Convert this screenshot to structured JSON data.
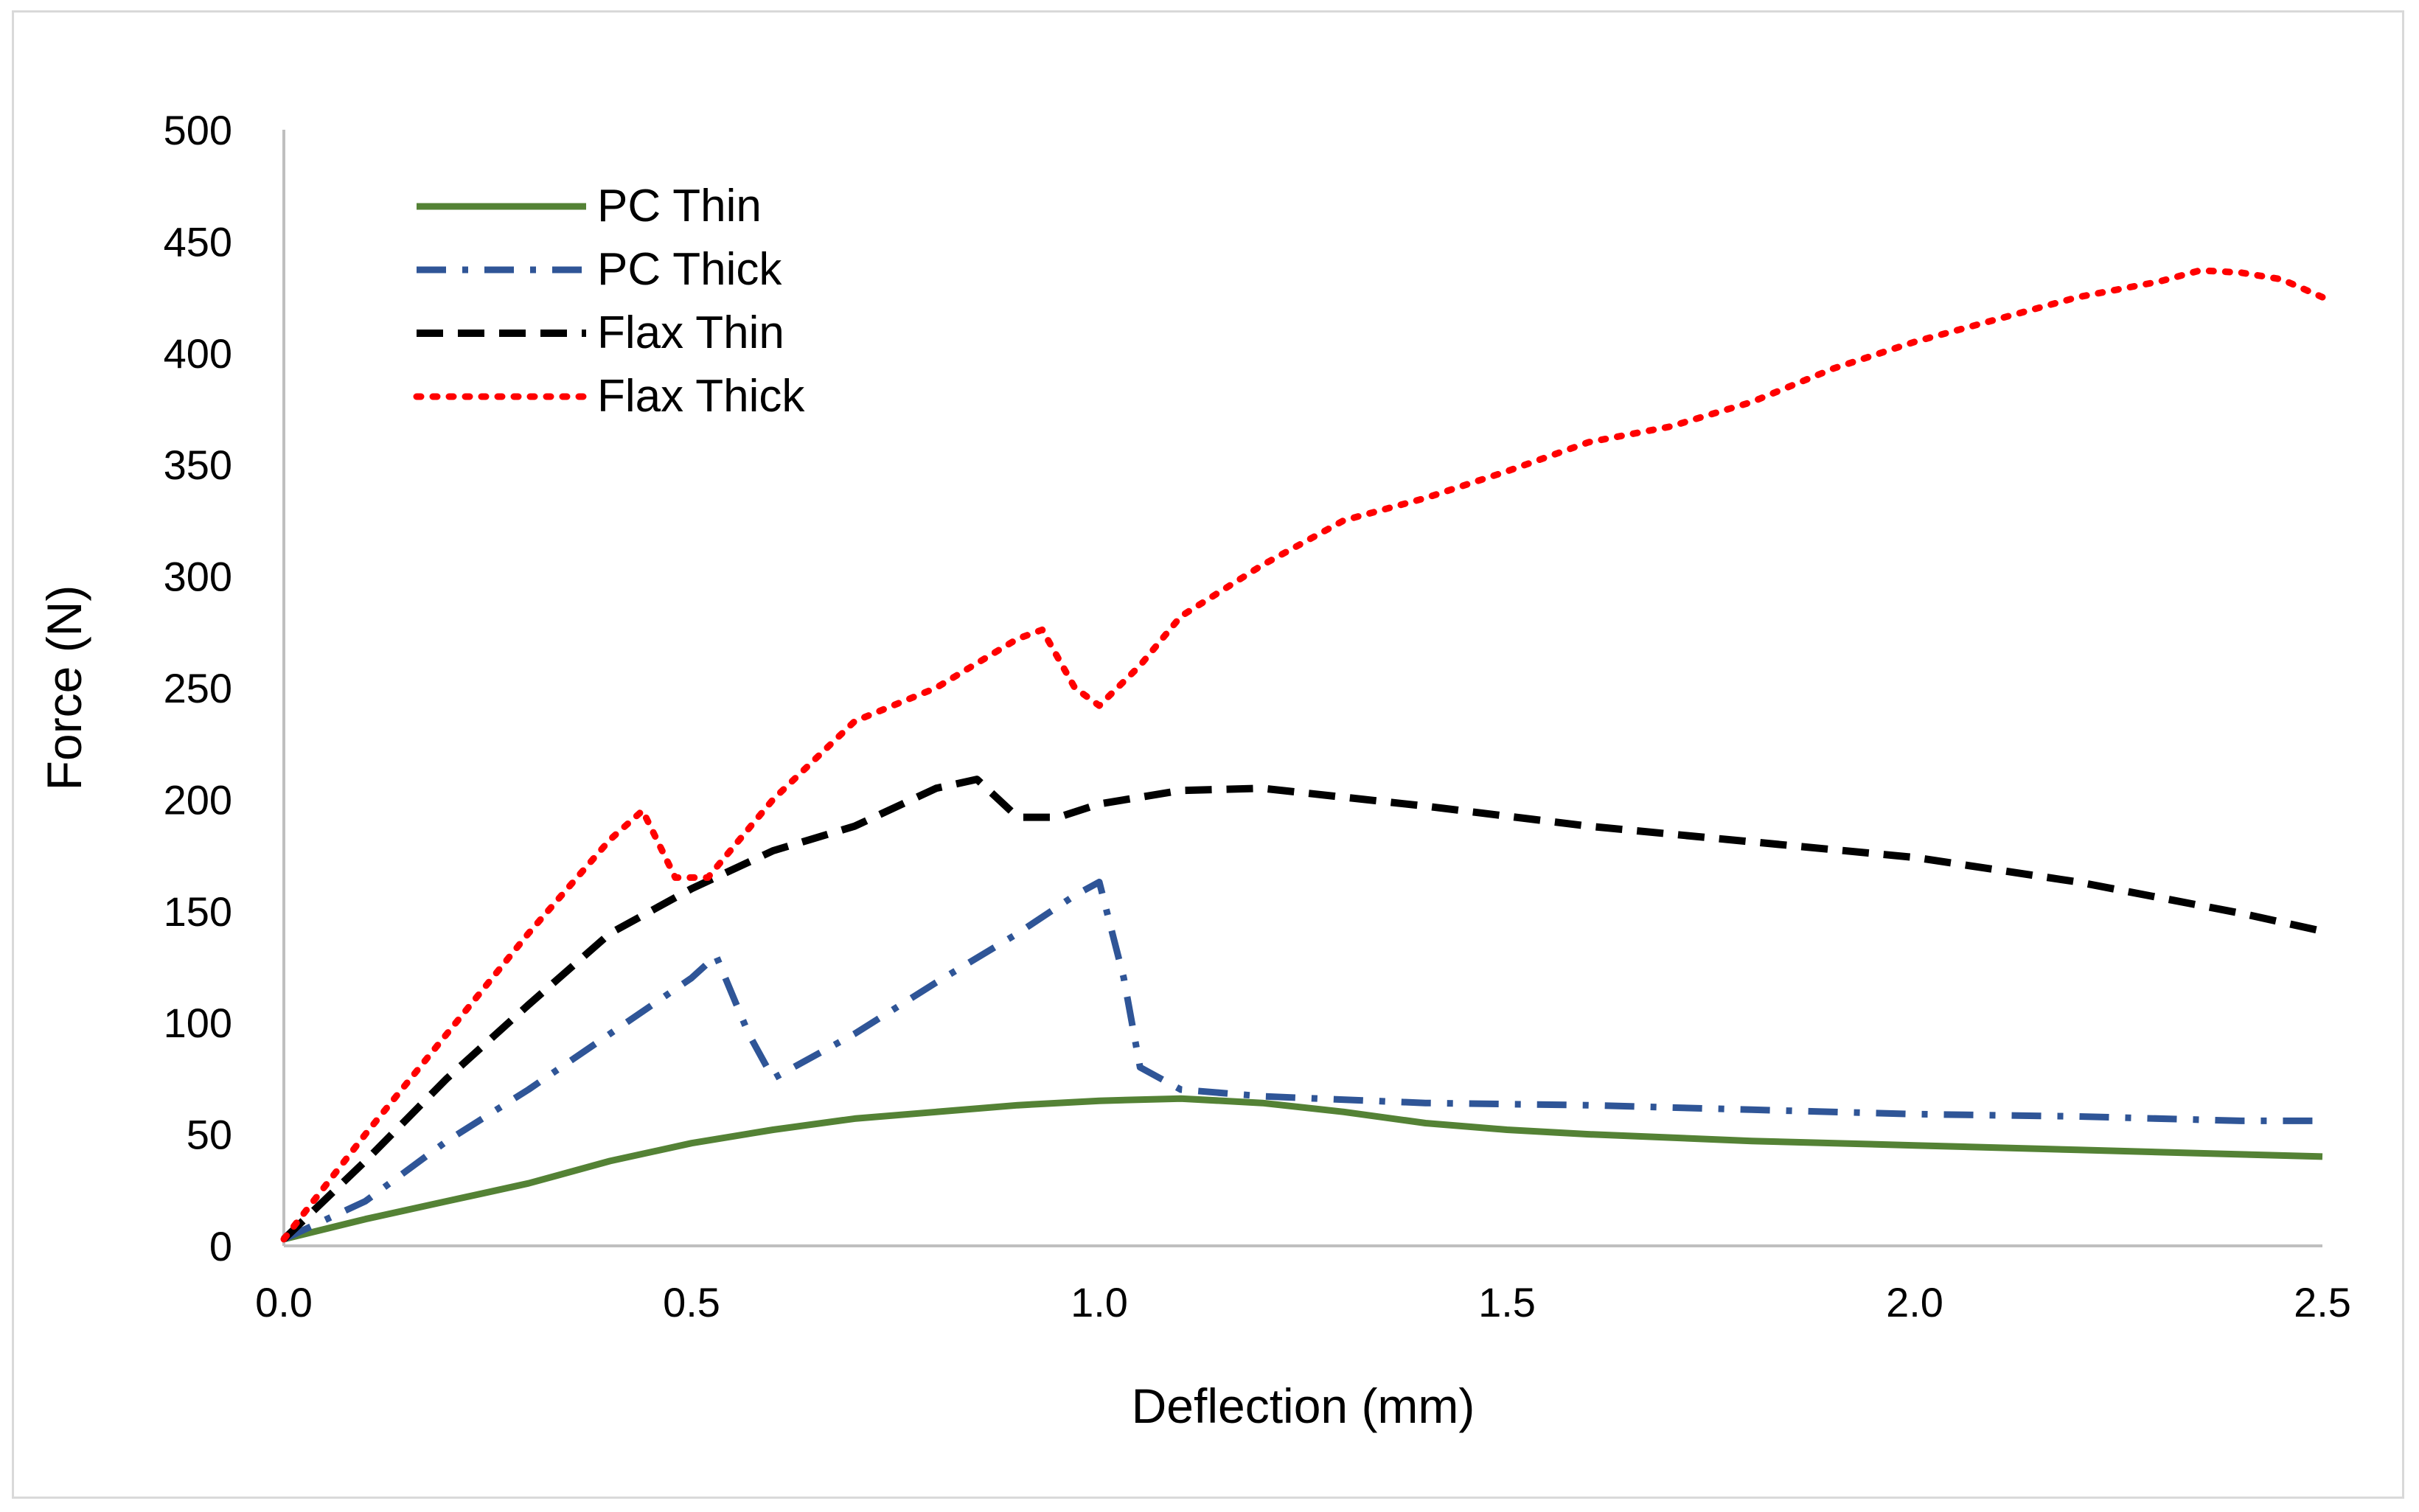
{
  "chart_data": {
    "type": "line",
    "title": "",
    "xlabel": "Deflection (mm)",
    "ylabel": "Force (N)",
    "xlim": [
      0,
      2.5
    ],
    "ylim": [
      0,
      500
    ],
    "x_ticks": [
      "0.0",
      "0.5",
      "1.0",
      "1.5",
      "2.0",
      "2.5"
    ],
    "y_ticks": [
      "0",
      "50",
      "100",
      "150",
      "200",
      "250",
      "300",
      "350",
      "400",
      "450",
      "500"
    ],
    "grid": false,
    "legend_position": "top-left",
    "series": [
      {
        "name": "PC Thin",
        "color": "#548235",
        "style": "solid",
        "points": [
          [
            0,
            3
          ],
          [
            0.1,
            12
          ],
          [
            0.2,
            20
          ],
          [
            0.3,
            28
          ],
          [
            0.4,
            38
          ],
          [
            0.5,
            46
          ],
          [
            0.6,
            52
          ],
          [
            0.7,
            57
          ],
          [
            0.8,
            60
          ],
          [
            0.9,
            63
          ],
          [
            1.0,
            65
          ],
          [
            1.1,
            66
          ],
          [
            1.2,
            64
          ],
          [
            1.3,
            60
          ],
          [
            1.4,
            55
          ],
          [
            1.5,
            52
          ],
          [
            1.6,
            50
          ],
          [
            1.8,
            47
          ],
          [
            2.0,
            45
          ],
          [
            2.2,
            43
          ],
          [
            2.4,
            41
          ],
          [
            2.5,
            40
          ]
        ]
      },
      {
        "name": "PC Thick",
        "color": "#2F5597",
        "style": "dash-dot",
        "points": [
          [
            0,
            3
          ],
          [
            0.1,
            20
          ],
          [
            0.2,
            47
          ],
          [
            0.3,
            70
          ],
          [
            0.4,
            95
          ],
          [
            0.5,
            120
          ],
          [
            0.53,
            130
          ],
          [
            0.57,
            95
          ],
          [
            0.6,
            75
          ],
          [
            0.7,
            95
          ],
          [
            0.8,
            118
          ],
          [
            0.9,
            140
          ],
          [
            0.97,
            157
          ],
          [
            1.0,
            163
          ],
          [
            1.03,
            120
          ],
          [
            1.05,
            80
          ],
          [
            1.1,
            70
          ],
          [
            1.2,
            67
          ],
          [
            1.4,
            64
          ],
          [
            1.6,
            63
          ],
          [
            1.8,
            61
          ],
          [
            2.0,
            59
          ],
          [
            2.2,
            58
          ],
          [
            2.4,
            56
          ],
          [
            2.5,
            56
          ]
        ]
      },
      {
        "name": "Flax Thin",
        "color": "#000000",
        "style": "dashed",
        "points": [
          [
            0,
            3
          ],
          [
            0.1,
            38
          ],
          [
            0.2,
            75
          ],
          [
            0.3,
            108
          ],
          [
            0.4,
            140
          ],
          [
            0.5,
            160
          ],
          [
            0.6,
            177
          ],
          [
            0.7,
            188
          ],
          [
            0.8,
            205
          ],
          [
            0.85,
            209
          ],
          [
            0.9,
            192
          ],
          [
            0.95,
            192
          ],
          [
            1.0,
            198
          ],
          [
            1.1,
            204
          ],
          [
            1.2,
            205
          ],
          [
            1.4,
            197
          ],
          [
            1.6,
            188
          ],
          [
            1.8,
            181
          ],
          [
            2.0,
            174
          ],
          [
            2.2,
            163
          ],
          [
            2.4,
            149
          ],
          [
            2.5,
            141
          ]
        ]
      },
      {
        "name": "Flax Thick",
        "color": "#FF0000",
        "style": "dotted",
        "points": [
          [
            0,
            3
          ],
          [
            0.1,
            50
          ],
          [
            0.2,
            95
          ],
          [
            0.3,
            140
          ],
          [
            0.4,
            182
          ],
          [
            0.44,
            195
          ],
          [
            0.48,
            165
          ],
          [
            0.52,
            165
          ],
          [
            0.6,
            200
          ],
          [
            0.7,
            235
          ],
          [
            0.8,
            250
          ],
          [
            0.9,
            272
          ],
          [
            0.93,
            276
          ],
          [
            0.97,
            250
          ],
          [
            1.0,
            242
          ],
          [
            1.05,
            260
          ],
          [
            1.1,
            282
          ],
          [
            1.2,
            305
          ],
          [
            1.3,
            325
          ],
          [
            1.4,
            335
          ],
          [
            1.5,
            347
          ],
          [
            1.6,
            360
          ],
          [
            1.7,
            367
          ],
          [
            1.8,
            378
          ],
          [
            1.9,
            393
          ],
          [
            2.0,
            405
          ],
          [
            2.1,
            415
          ],
          [
            2.2,
            425
          ],
          [
            2.3,
            432
          ],
          [
            2.35,
            437
          ],
          [
            2.4,
            436
          ],
          [
            2.45,
            433
          ],
          [
            2.5,
            425
          ]
        ]
      }
    ]
  }
}
